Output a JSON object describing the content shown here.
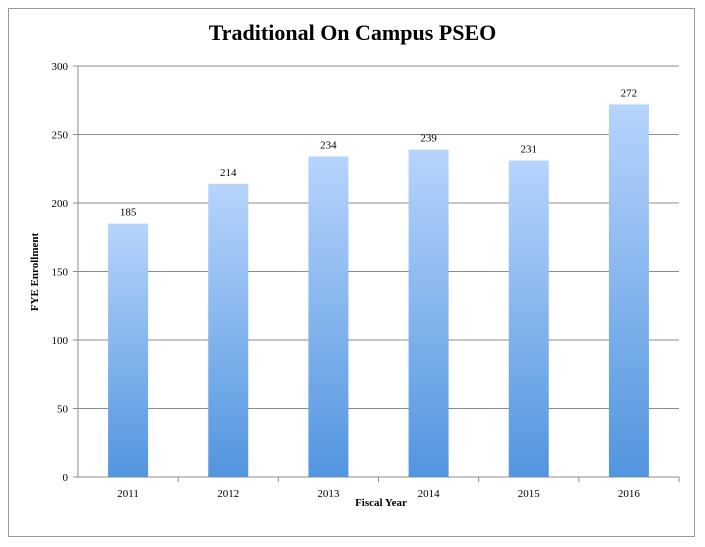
{
  "chart_data": {
    "type": "bar",
    "title": "Traditional On Campus PSEO",
    "xlabel": "Fiscal Year",
    "ylabel": "FYE Enrollment",
    "categories": [
      "2011",
      "2012",
      "2013",
      "2014",
      "2015",
      "2016"
    ],
    "values": [
      185,
      214,
      234,
      239,
      231,
      272
    ],
    "data_labels": [
      "185",
      "214",
      "234",
      "239",
      "231",
      "272"
    ],
    "ylim": [
      0,
      300
    ],
    "yticks": [
      0,
      50,
      100,
      150,
      200,
      250,
      300
    ],
    "grid": true,
    "legend": "none",
    "bar_color_top": "#b7d4fc",
    "bar_color_bottom": "#5295df"
  }
}
